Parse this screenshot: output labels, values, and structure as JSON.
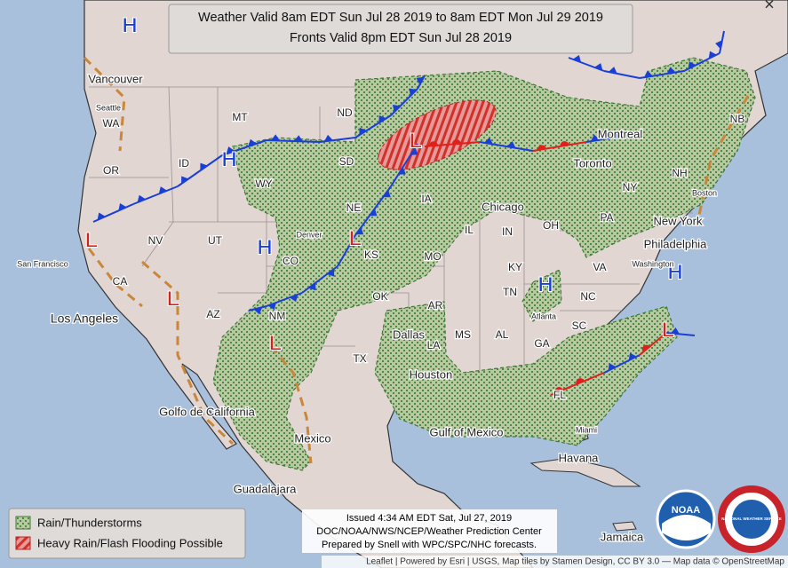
{
  "header": {
    "title_line1": "Weather Valid 8am EDT Sun Jul 28 2019 to 8am EDT Mon Jul 29 2019",
    "title_line2": "Fronts Valid 8pm EDT Sun Jul 28 2019"
  },
  "close": "×",
  "pressure_centers": [
    "H",
    "H",
    "H",
    "H",
    "H",
    "L",
    "L",
    "L",
    "L",
    "L",
    "L"
  ],
  "places": [
    "Vancouver",
    "Seattle",
    "WA",
    "OR",
    "CA",
    "NV",
    "ID",
    "MT",
    "WY",
    "UT",
    "AZ",
    "CO",
    "Denver",
    "NM",
    "ND",
    "SD",
    "NE",
    "KS",
    "OK",
    "TX",
    "IA",
    "MO",
    "AR",
    "LA",
    "MS",
    "AL",
    "GA",
    "TN",
    "KY",
    "IL",
    "IN",
    "OH",
    "PA",
    "NY",
    "VA",
    "NC",
    "SC",
    "FL",
    "NH",
    "NB",
    "San Francisco",
    "Los Angeles",
    "Golfo de California",
    "Mexico",
    "Guadalajara",
    "Dallas",
    "Houston",
    "Gulf of Mexico",
    "Havana",
    "Jamaica",
    "Miami",
    "Atlanta",
    "Chicago",
    "Toronto",
    "Montreal",
    "Boston",
    "New York",
    "Philadelphia",
    "Washington"
  ],
  "legend": [
    "Rain/Thunderstorms",
    "Heavy Rain/Flash Flooding Possible"
  ],
  "issued": [
    "Issued 4:34 AM EDT Sat, Jul 27, 2019",
    "DOC/NOAA/NWS/NCEP/Weather Prediction Center",
    "Prepared by Snell with WPC/SPC/NHC forecasts."
  ],
  "attribution": "Leaflet | Powered by Esri | USGS, Map tiles by Stamen Design, CC BY 3.0 — Map data © OpenStreetMap",
  "logos": [
    "NOAA",
    "NATIONAL WEATHER SERVICE"
  ]
}
